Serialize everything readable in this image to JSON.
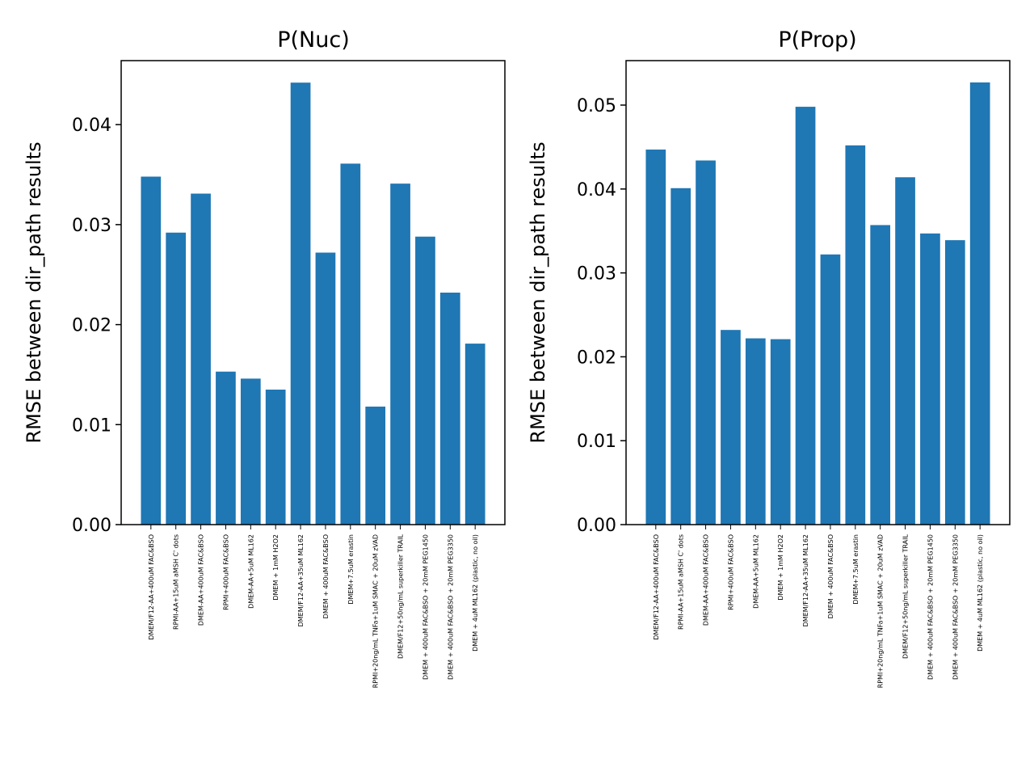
{
  "chart_data": [
    {
      "type": "bar",
      "title": "P(Nuc)",
      "xlabel": "",
      "ylabel": "RMSE between dir_path results",
      "categories": [
        "DMEM/F12-AA+400uM FAC&BSO",
        "RPMI-AA+15uM aMSH C' dots",
        "DMEM-AA+400uM FAC&BSO",
        "RPMI+400uM FAC&BSO",
        "DMEM-AA+5uM ML162",
        "DMEM + 1mM H2O2",
        "DMEM/F12-AA+35uM ML162",
        "DMEM + 400uM FAC&BSO",
        "DMEM+7.5uM erastin",
        "RPMI+20ng/mL TNFa+1uM SMAC + 20uM zVAD",
        "DMEM/F12+50ng/mL superkiller TRAIL",
        "DMEM + 400uM FAC&BSO + 20mM PEG1450",
        "DMEM + 400uM FAC&BSO + 20mM PEG3350",
        "DMEM + 4uM ML162 (plastic, no oil)"
      ],
      "values": [
        0.0348,
        0.0292,
        0.0331,
        0.0153,
        0.0146,
        0.0135,
        0.0442,
        0.0272,
        0.0361,
        0.0118,
        0.0341,
        0.0288,
        0.0232,
        0.0181
      ],
      "ylim": [
        0,
        0.0464
      ],
      "yticks": [
        0.0,
        0.01,
        0.02,
        0.03,
        0.04
      ],
      "ytick_labels": [
        "0.00",
        "0.01",
        "0.02",
        "0.03",
        "0.04"
      ],
      "grid": false,
      "bar_color": "#1f77b4"
    },
    {
      "type": "bar",
      "title": "P(Prop)",
      "xlabel": "",
      "ylabel": "RMSE between dir_path results",
      "categories": [
        "DMEM/F12-AA+400uM FAC&BSO",
        "RPMI-AA+15uM aMSH C' dots",
        "DMEM-AA+400uM FAC&BSO",
        "RPMI+400uM FAC&BSO",
        "DMEM-AA+5uM ML162",
        "DMEM + 1mM H2O2",
        "DMEM/F12-AA+35uM ML162",
        "DMEM + 400uM FAC&BSO",
        "DMEM+7.5uM erastin",
        "RPMI+20ng/mL TNFa+1uM SMAC + 20uM zVAD",
        "DMEM/F12+50ng/mL superkiller TRAIL",
        "DMEM + 400uM FAC&BSO + 20mM PEG1450",
        "DMEM + 400uM FAC&BSO + 20mM PEG3350",
        "DMEM + 4uM ML162 (plastic, no oil)"
      ],
      "values": [
        0.0447,
        0.0401,
        0.0434,
        0.0232,
        0.0222,
        0.0221,
        0.0498,
        0.0322,
        0.0452,
        0.0357,
        0.0414,
        0.0347,
        0.0339,
        0.0527
      ],
      "ylim": [
        0,
        0.0553
      ],
      "yticks": [
        0.0,
        0.01,
        0.02,
        0.03,
        0.04,
        0.05
      ],
      "ytick_labels": [
        "0.00",
        "0.01",
        "0.02",
        "0.03",
        "0.04",
        "0.05"
      ],
      "grid": false,
      "bar_color": "#1f77b4"
    }
  ]
}
